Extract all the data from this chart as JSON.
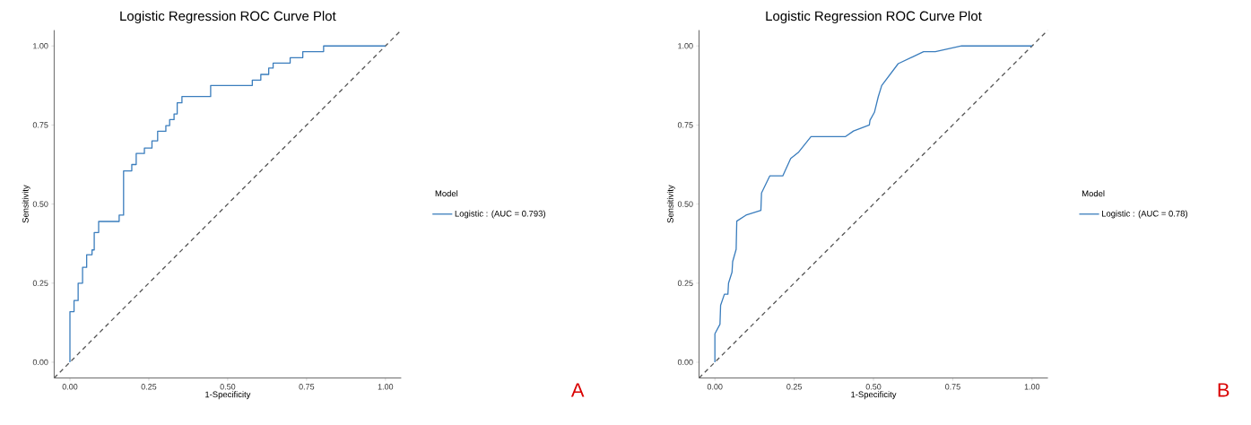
{
  "chart_data": [
    {
      "type": "line",
      "title": "Logistic Regression ROC Curve Plot",
      "xlabel": "1-Specificity",
      "ylabel": "Sensitivity",
      "legend_title": "Model",
      "legend": "right",
      "grid": false,
      "xlim": [
        -0.05,
        1.05
      ],
      "ylim": [
        -0.05,
        1.05
      ],
      "xticks": [
        {
          "value": 0,
          "label": "0.00"
        },
        {
          "value": 0.25,
          "label": "0.25"
        },
        {
          "value": 0.5,
          "label": "0.50"
        },
        {
          "value": 0.75,
          "label": "0.75"
        },
        {
          "value": 1,
          "label": "1.00"
        }
      ],
      "yticks": [
        {
          "value": 0,
          "label": "0.00"
        },
        {
          "value": 0.25,
          "label": "0.25"
        },
        {
          "value": 0.5,
          "label": "0.50"
        },
        {
          "value": 0.75,
          "label": "0.75"
        },
        {
          "value": 1,
          "label": "1.00"
        }
      ],
      "annotations": [
        "A"
      ],
      "series": [
        {
          "name": "Logistic : (AUC = 0.793)",
          "color": "#3a7dbd",
          "line_style": "solid",
          "x": [
            0,
            0,
            0.013,
            0.013,
            0.026,
            0.026,
            0.04,
            0.04,
            0.053,
            0.053,
            0.07,
            0.07,
            0.077,
            0.077,
            0.091,
            0.091,
            0.156,
            0.156,
            0.17,
            0.17,
            0.196,
            0.196,
            0.21,
            0.21,
            0.236,
            0.236,
            0.26,
            0.26,
            0.278,
            0.278,
            0.304,
            0.304,
            0.316,
            0.316,
            0.33,
            0.33,
            0.34,
            0.34,
            0.355,
            0.355,
            0.446,
            0.446,
            0.578,
            0.578,
            0.605,
            0.605,
            0.63,
            0.63,
            0.644,
            0.644,
            0.698,
            0.698,
            0.738,
            0.738,
            0.804,
            0.804,
            1.0
          ],
          "values": [
            0,
            0.16,
            0.16,
            0.195,
            0.195,
            0.25,
            0.25,
            0.3,
            0.3,
            0.34,
            0.34,
            0.355,
            0.355,
            0.41,
            0.41,
            0.445,
            0.445,
            0.465,
            0.465,
            0.605,
            0.605,
            0.625,
            0.625,
            0.66,
            0.66,
            0.677,
            0.677,
            0.7,
            0.7,
            0.73,
            0.73,
            0.748,
            0.748,
            0.767,
            0.767,
            0.785,
            0.785,
            0.82,
            0.82,
            0.84,
            0.84,
            0.875,
            0.875,
            0.892,
            0.892,
            0.91,
            0.91,
            0.93,
            0.93,
            0.946,
            0.946,
            0.963,
            0.963,
            0.982,
            0.982,
            1.0,
            1.0
          ]
        },
        {
          "color": "#555555",
          "line_style": "dashed",
          "x": [
            -0.05,
            1.05
          ],
          "values": [
            -0.05,
            1.05
          ]
        }
      ]
    },
    {
      "type": "line",
      "title": "Logistic Regression ROC Curve Plot",
      "xlabel": "1-Specificity",
      "ylabel": "Sensitivity",
      "legend_title": "Model",
      "legend": "right",
      "grid": false,
      "xlim": [
        -0.05,
        1.05
      ],
      "ylim": [
        -0.05,
        1.05
      ],
      "xticks": [
        {
          "value": 0,
          "label": "0.00"
        },
        {
          "value": 0.25,
          "label": "0.25"
        },
        {
          "value": 0.5,
          "label": "0.50"
        },
        {
          "value": 0.75,
          "label": "0.75"
        },
        {
          "value": 1,
          "label": "1.00"
        }
      ],
      "yticks": [
        {
          "value": 0,
          "label": "0.00"
        },
        {
          "value": 0.25,
          "label": "0.25"
        },
        {
          "value": 0.5,
          "label": "0.50"
        },
        {
          "value": 0.75,
          "label": "0.75"
        },
        {
          "value": 1,
          "label": "1.00"
        }
      ],
      "annotations": [
        "B"
      ],
      "series": [
        {
          "name": "Logistic : (AUC = 0.78)",
          "color": "#3a7dbd",
          "line_style": "solid",
          "x": [
            0,
            0,
            0.016,
            0.018,
            0.03,
            0.041,
            0.043,
            0.054,
            0.056,
            0.067,
            0.069,
            0.098,
            0.145,
            0.147,
            0.173,
            0.214,
            0.239,
            0.263,
            0.303,
            0.411,
            0.437,
            0.487,
            0.489,
            0.503,
            0.515,
            0.526,
            0.578,
            0.658,
            0.695,
            0.778,
            1.0
          ],
          "values": [
            0,
            0.09,
            0.12,
            0.18,
            0.215,
            0.215,
            0.25,
            0.285,
            0.318,
            0.357,
            0.446,
            0.465,
            0.48,
            0.535,
            0.589,
            0.589,
            0.644,
            0.663,
            0.713,
            0.713,
            0.731,
            0.75,
            0.765,
            0.79,
            0.839,
            0.875,
            0.944,
            0.982,
            0.982,
            1.0,
            1.0
          ]
        },
        {
          "color": "#555555",
          "line_style": "dashed",
          "x": [
            -0.05,
            1.05
          ],
          "values": [
            -0.05,
            1.05
          ]
        }
      ]
    }
  ]
}
